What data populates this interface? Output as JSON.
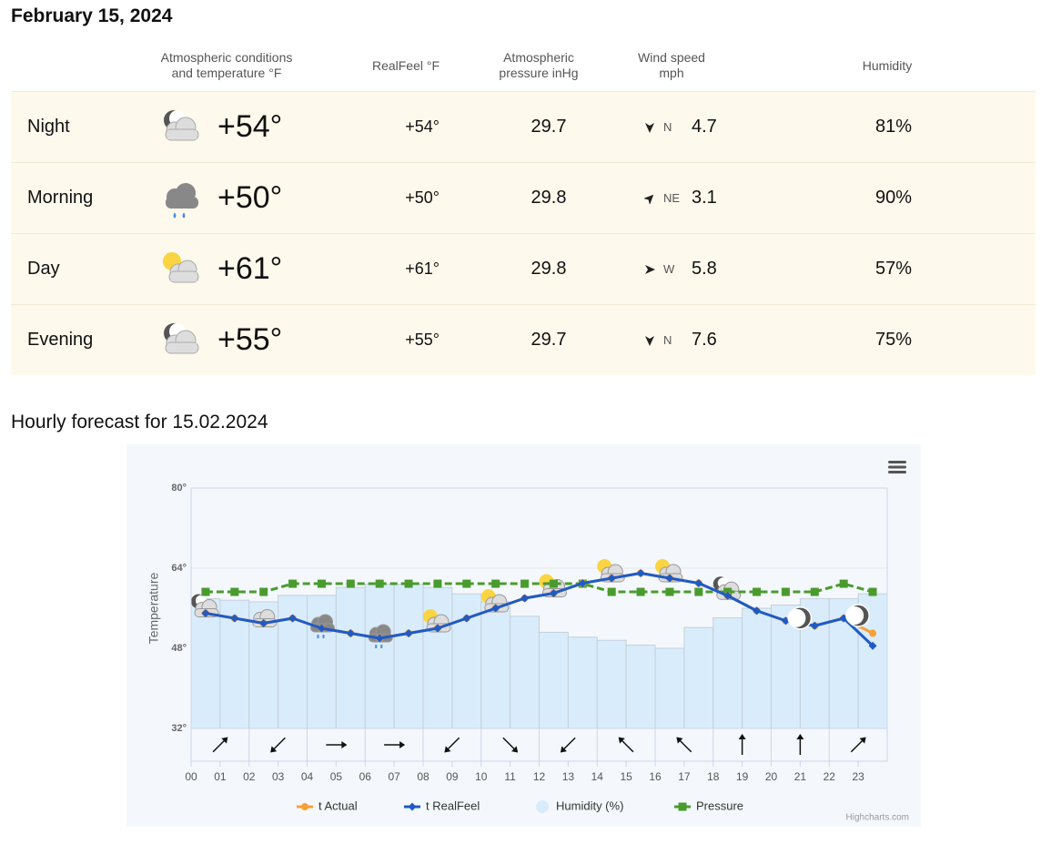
{
  "header": {
    "title": "February 15, 2024"
  },
  "table": {
    "columns": [
      "Atmospheric conditions and temperature °F",
      "RealFeel °F",
      "Atmospheric pressure inHg",
      "Wind speed mph",
      "Humidity"
    ],
    "rows": [
      {
        "period": "Night",
        "temperature": "+54°",
        "realfeel": "+54°",
        "pressure": "29.7",
        "wind_direction": "N",
        "wind_speed": "4.7",
        "humidity": "81%"
      },
      {
        "period": "Morning",
        "temperature": "+50°",
        "realfeel": "+50°",
        "pressure": "29.8",
        "wind_direction": "NE",
        "wind_speed": "3.1",
        "humidity": "90%"
      },
      {
        "period": "Day",
        "temperature": "+61°",
        "realfeel": "+61°",
        "pressure": "29.8",
        "wind_direction": "W",
        "wind_speed": "5.8",
        "humidity": "57%"
      },
      {
        "period": "Evening",
        "temperature": "+55°",
        "realfeel": "+55°",
        "pressure": "29.7",
        "wind_direction": "N",
        "wind_speed": "7.6",
        "humidity": "75%"
      }
    ]
  },
  "chart_data": {
    "type": "line",
    "title": "Hourly forecast for 15.02.2024",
    "y_label": "Temperature",
    "credit": "Highcharts.com",
    "categories": [
      "00",
      "01",
      "02",
      "03",
      "04",
      "05",
      "06",
      "07",
      "08",
      "09",
      "10",
      "11",
      "12",
      "13",
      "14",
      "15",
      "16",
      "17",
      "18",
      "19",
      "20",
      "21",
      "22",
      "23"
    ],
    "ylim": [
      32,
      80
    ],
    "yticks": [
      {
        "value": 32,
        "label": "32°"
      },
      {
        "value": 48,
        "label": "48°"
      },
      {
        "value": 64,
        "label": "64°"
      },
      {
        "value": 80,
        "label": "80°"
      }
    ],
    "y2lim": [
      28.03,
      30.97
    ],
    "y3lim": [
      0,
      150
    ],
    "grid": true,
    "legend": "bottom",
    "series": [
      {
        "name": "t Actual",
        "color": "#f7a035",
        "marker": "circle",
        "values": [
          55,
          54,
          53,
          54,
          52,
          51,
          50,
          51,
          52,
          54,
          56,
          58,
          59,
          61,
          62,
          63,
          62,
          61,
          58.5,
          55.5,
          53.5,
          52.5,
          54,
          51
        ]
      },
      {
        "name": "t RealFeel",
        "color": "#1f5bc6",
        "marker": "diamond",
        "values": [
          55,
          54,
          53,
          54,
          52,
          51,
          50,
          51,
          52,
          54,
          56,
          58,
          59,
          61,
          62,
          63,
          62,
          61,
          58.5,
          55.5,
          53.5,
          52.5,
          54,
          48.5
        ]
      },
      {
        "name": "Humidity (%)",
        "color": "#d9ecfb",
        "marker": "column",
        "axis": "y3",
        "values": [
          81,
          80,
          79,
          83,
          83,
          88,
          90,
          90,
          88,
          84,
          79,
          70,
          60,
          57,
          55,
          52,
          50,
          63,
          69,
          75,
          77,
          81,
          81,
          84
        ]
      },
      {
        "name": "Pressure",
        "color": "#4a9b2e",
        "marker": "square",
        "axis": "y2",
        "values": [
          29.7,
          29.7,
          29.7,
          29.8,
          29.8,
          29.8,
          29.8,
          29.8,
          29.8,
          29.8,
          29.8,
          29.8,
          29.8,
          29.8,
          29.7,
          29.7,
          29.7,
          29.7,
          29.7,
          29.7,
          29.7,
          29.7,
          29.8,
          29.7
        ]
      }
    ]
  }
}
